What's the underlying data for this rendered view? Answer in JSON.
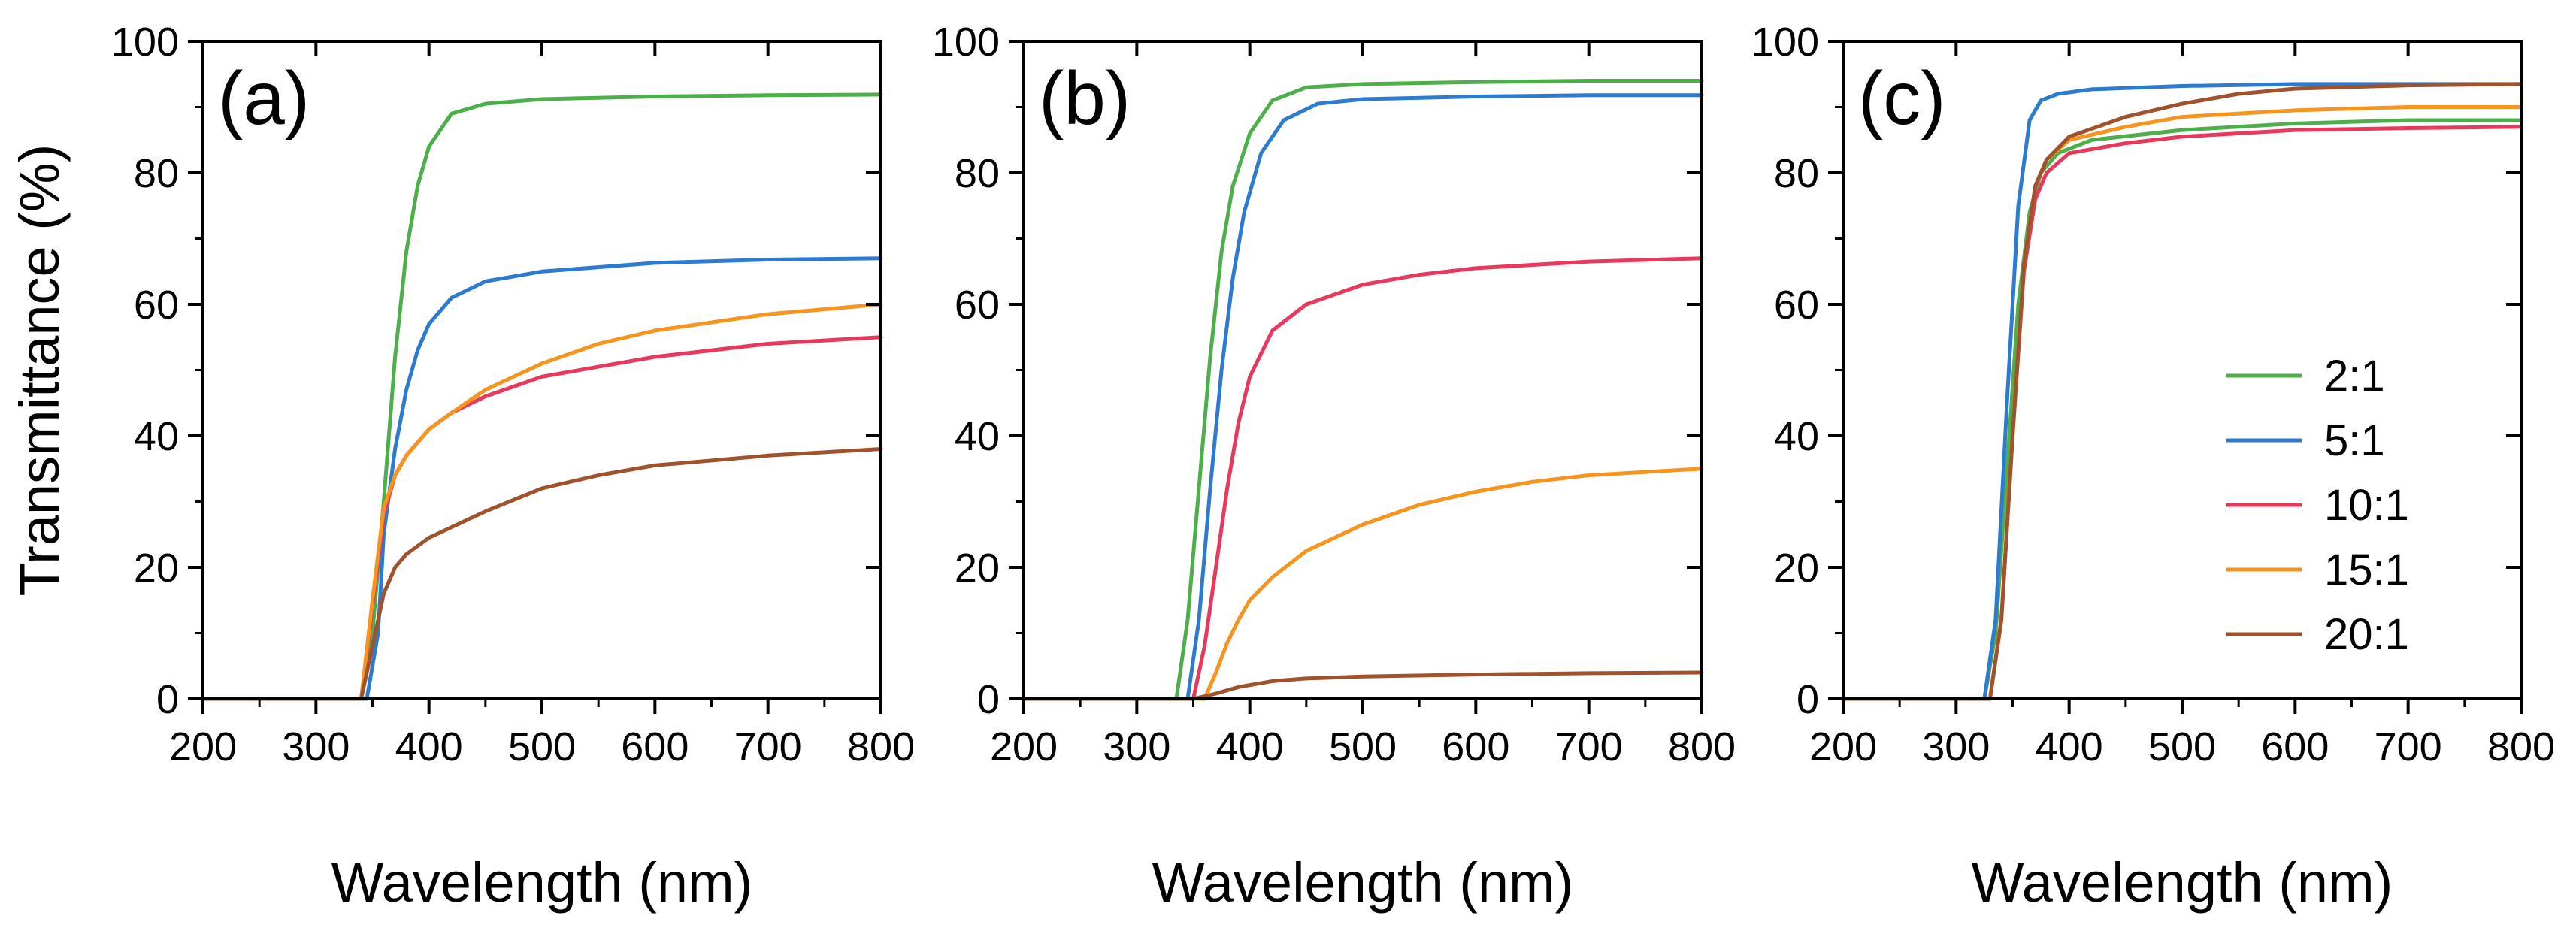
{
  "chart_data": [
    {
      "type": "line",
      "panel_label": "(a)",
      "xlabel": "Wavelength (nm)",
      "ylabel": "Transmittance (%)",
      "xlim": [
        200,
        800
      ],
      "ylim": [
        0,
        100
      ],
      "xticks": [
        "200",
        "300",
        "400",
        "500",
        "600",
        "700",
        "800"
      ],
      "yticks": [
        "0",
        "20",
        "40",
        "60",
        "80",
        "100"
      ],
      "series": [
        {
          "name": "2:1",
          "color": "#4daf4a",
          "x": [
            200,
            340,
            350,
            360,
            370,
            380,
            390,
            400,
            420,
            450,
            500,
            600,
            700,
            800
          ],
          "y": [
            0,
            0,
            10,
            30,
            52,
            68,
            78,
            84,
            89,
            90.5,
            91.2,
            91.6,
            91.8,
            91.9
          ]
        },
        {
          "name": "5:1",
          "color": "#2c7bd1",
          "x": [
            200,
            345,
            355,
            360,
            370,
            380,
            390,
            400,
            420,
            450,
            500,
            600,
            700,
            800
          ],
          "y": [
            0,
            0,
            10,
            25,
            38,
            47,
            53,
            57,
            61,
            63.5,
            65,
            66.3,
            66.8,
            67
          ]
        },
        {
          "name": "10:1",
          "color": "#e8385b",
          "x": [
            200,
            340,
            350,
            360,
            370,
            380,
            400,
            420,
            450,
            500,
            550,
            600,
            700,
            800
          ],
          "y": [
            0,
            0,
            14,
            28,
            34,
            37,
            41,
            43.5,
            46,
            49,
            50.5,
            52,
            54,
            55
          ]
        },
        {
          "name": "15:1",
          "color": "#f7941d",
          "x": [
            200,
            340,
            350,
            360,
            370,
            380,
            400,
            420,
            450,
            500,
            550,
            600,
            700,
            800
          ],
          "y": [
            0,
            0,
            15,
            29,
            34,
            37,
            41,
            43.5,
            47,
            51,
            54,
            56,
            58.5,
            60
          ]
        },
        {
          "name": "20:1",
          "color": "#a0522d",
          "x": [
            200,
            340,
            350,
            360,
            370,
            380,
            400,
            450,
            500,
            550,
            600,
            700,
            800
          ],
          "y": [
            0,
            0,
            8,
            16,
            20,
            22,
            24.5,
            28.5,
            32,
            34,
            35.5,
            37,
            38
          ]
        }
      ]
    },
    {
      "type": "line",
      "panel_label": "(b)",
      "xlabel": "Wavelength (nm)",
      "xlim": [
        200,
        800
      ],
      "ylim": [
        0,
        100
      ],
      "xticks": [
        "200",
        "300",
        "400",
        "500",
        "600",
        "700",
        "800"
      ],
      "yticks": [
        "0",
        "20",
        "40",
        "60",
        "80",
        "100"
      ],
      "series": [
        {
          "name": "2:1",
          "color": "#4daf4a",
          "x": [
            200,
            335,
            345,
            355,
            365,
            375,
            385,
            400,
            420,
            450,
            500,
            600,
            700,
            800
          ],
          "y": [
            0,
            0,
            12,
            32,
            52,
            68,
            78,
            86,
            91,
            93,
            93.5,
            93.8,
            94,
            94
          ]
        },
        {
          "name": "5:1",
          "color": "#2c7bd1",
          "x": [
            200,
            345,
            355,
            365,
            375,
            385,
            395,
            410,
            430,
            460,
            500,
            600,
            700,
            800
          ],
          "y": [
            0,
            0,
            12,
            32,
            50,
            64,
            74,
            83,
            88,
            90.5,
            91.2,
            91.6,
            91.8,
            91.8
          ]
        },
        {
          "name": "10:1",
          "color": "#e8385b",
          "x": [
            200,
            350,
            360,
            370,
            380,
            390,
            400,
            420,
            450,
            500,
            550,
            600,
            700,
            800
          ],
          "y": [
            0,
            0,
            8,
            20,
            32,
            42,
            49,
            56,
            60,
            63,
            64.5,
            65.5,
            66.5,
            67
          ]
        },
        {
          "name": "15:1",
          "color": "#f7941d",
          "x": [
            200,
            360,
            370,
            380,
            390,
            400,
            420,
            450,
            500,
            550,
            600,
            650,
            700,
            800
          ],
          "y": [
            0,
            0,
            4,
            8.5,
            12,
            15,
            18.5,
            22.5,
            26.5,
            29.5,
            31.5,
            33,
            34,
            35
          ]
        },
        {
          "name": "20:1",
          "color": "#a0522d",
          "x": [
            200,
            350,
            370,
            390,
            420,
            450,
            500,
            600,
            700,
            800
          ],
          "y": [
            0,
            0,
            0.8,
            1.8,
            2.7,
            3.1,
            3.4,
            3.7,
            3.9,
            4
          ]
        }
      ]
    },
    {
      "type": "line",
      "panel_label": "(c)",
      "xlabel": "Wavelength (nm)",
      "xlim": [
        200,
        800
      ],
      "ylim": [
        0,
        100
      ],
      "xticks": [
        "200",
        "300",
        "400",
        "500",
        "600",
        "700",
        "800"
      ],
      "yticks": [
        "0",
        "20",
        "40",
        "60",
        "80",
        "100"
      ],
      "legend_position": "center-right",
      "series": [
        {
          "name": "2:1",
          "color": "#4daf4a",
          "x": [
            200,
            325,
            335,
            345,
            355,
            365,
            375,
            390,
            420,
            500,
            600,
            700,
            800
          ],
          "y": [
            0,
            0,
            10,
            35,
            60,
            74,
            80,
            83,
            85,
            86.5,
            87.5,
            88,
            88
          ]
        },
        {
          "name": "5:1",
          "color": "#2c7bd1",
          "x": [
            200,
            325,
            335,
            345,
            355,
            365,
            375,
            390,
            420,
            500,
            600,
            700,
            800
          ],
          "y": [
            0,
            0,
            12,
            45,
            75,
            88,
            91,
            92,
            92.7,
            93.2,
            93.5,
            93.5,
            93.5
          ]
        },
        {
          "name": "10:1",
          "color": "#e8385b",
          "x": [
            200,
            330,
            340,
            350,
            360,
            370,
            380,
            400,
            450,
            500,
            600,
            700,
            800
          ],
          "y": [
            0,
            0,
            12,
            40,
            65,
            76,
            80,
            83,
            84.5,
            85.5,
            86.5,
            86.8,
            87
          ]
        },
        {
          "name": "15:1",
          "color": "#f7941d",
          "x": [
            200,
            330,
            340,
            350,
            360,
            370,
            380,
            400,
            450,
            500,
            600,
            700,
            800
          ],
          "y": [
            0,
            0,
            12,
            40,
            66,
            78,
            82,
            85,
            87,
            88.5,
            89.5,
            90,
            90
          ]
        },
        {
          "name": "20:1",
          "color": "#a0522d",
          "x": [
            200,
            330,
            340,
            350,
            360,
            370,
            380,
            400,
            450,
            500,
            550,
            600,
            700,
            800
          ],
          "y": [
            0,
            0,
            12,
            40,
            66,
            78,
            82,
            85.5,
            88.5,
            90.5,
            92,
            92.8,
            93.3,
            93.5
          ]
        }
      ]
    }
  ]
}
